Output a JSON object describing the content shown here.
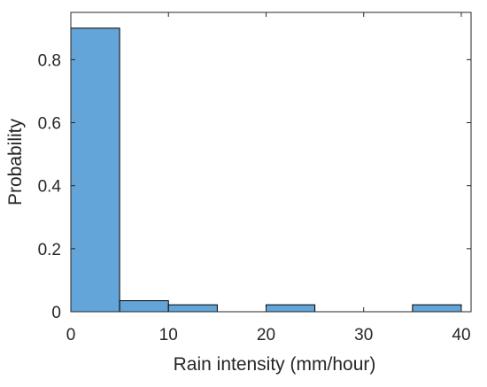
{
  "chart_data": {
    "type": "bar",
    "subtype": "histogram",
    "bin_edges": [
      0,
      5,
      10,
      15,
      20,
      25,
      30,
      35,
      40
    ],
    "values": [
      0.9,
      0.035,
      0.022,
      0,
      0.022,
      0,
      0,
      0.022
    ],
    "xlabel": "Rain intensity (mm/hour)",
    "ylabel": "Probability",
    "xlim": [
      0,
      41
    ],
    "ylim": [
      0,
      0.95
    ],
    "xticks": [
      0,
      10,
      20,
      30,
      40
    ],
    "xtick_labels": [
      "0",
      "10",
      "20",
      "30",
      "40"
    ],
    "yticks": [
      0,
      0.2,
      0.4,
      0.6,
      0.8
    ],
    "ytick_labels": [
      "0",
      "0.2",
      "0.4",
      "0.6",
      "0.8"
    ],
    "grid": false,
    "bar_color": "#63a5d9",
    "edge_color": "#000000"
  }
}
